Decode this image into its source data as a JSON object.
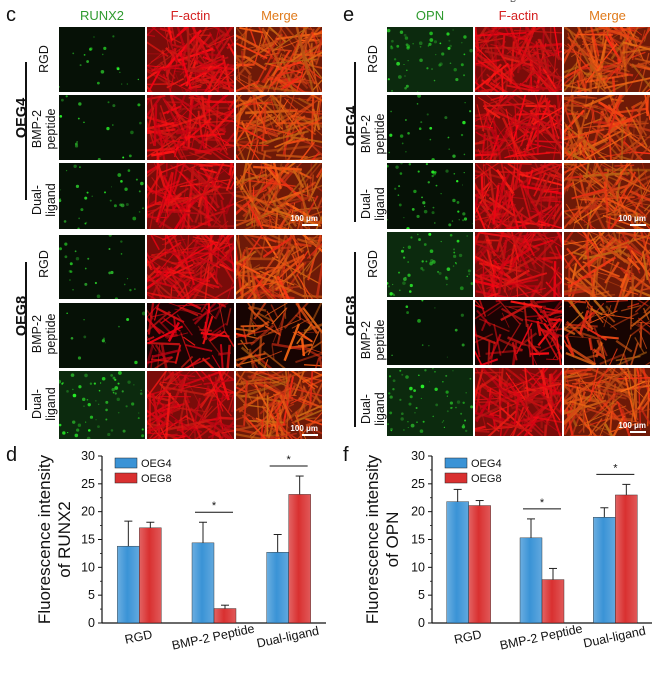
{
  "panels": {
    "c": {
      "letter": "c",
      "columns": [
        "RUNX2",
        "F-actin",
        "Merge"
      ],
      "column_colors": [
        "#2e9a2e",
        "#d42020",
        "#e07a1a"
      ],
      "groups": [
        "OEG4",
        "OEG8"
      ],
      "rows": [
        "RGD",
        "BMP-2\npeptide",
        "Dual-ligand"
      ],
      "scale_bar": "100 μm"
    },
    "e": {
      "letter": "e",
      "columns": [
        "OPN",
        "F-actin",
        "Merge"
      ],
      "column_colors": [
        "#2e9a2e",
        "#d42020",
        "#e07a1a"
      ],
      "groups": [
        "OEG4",
        "OEG8"
      ],
      "rows": [
        "RGD",
        "BMP-2\npeptide",
        "Dual-ligand"
      ],
      "scale_bar": "100 μm"
    },
    "top_fragment": "B"
  },
  "chart_data": [
    {
      "panel": "d",
      "type": "bar",
      "categories": [
        "RGD",
        "BMP-2 Peptide",
        "Dual-ligand"
      ],
      "series": [
        {
          "name": "OEG4",
          "values": [
            13.8,
            14.4,
            12.7
          ],
          "errors": [
            4.5,
            3.7,
            3.2
          ],
          "color": "#3a93d6"
        },
        {
          "name": "OEG8",
          "values": [
            17.1,
            2.6,
            23.1
          ],
          "errors": [
            1.0,
            0.6,
            3.3
          ],
          "color": "#d93030"
        }
      ],
      "ylabel": "Fluorescence intensity of RUNX2",
      "ylabel_lines": [
        "Fluorescence intensity",
        "of RUNX2"
      ],
      "ylim": [
        0,
        30
      ],
      "yticks": [
        "0",
        "5",
        "10",
        "15",
        "20",
        "25",
        "30"
      ],
      "significance": [
        {
          "category": "BMP-2 Peptide",
          "mark": "*"
        },
        {
          "category": "Dual-ligand",
          "mark": "*"
        }
      ],
      "legend_position": "top-left",
      "grid": false
    },
    {
      "panel": "f",
      "type": "bar",
      "categories": [
        "RGD",
        "BMP-2 Peptide",
        "Dual-ligand"
      ],
      "series": [
        {
          "name": "OEG4",
          "values": [
            21.8,
            15.3,
            19.0
          ],
          "errors": [
            2.2,
            3.4,
            1.7
          ],
          "color": "#3a93d6"
        },
        {
          "name": "OEG8",
          "values": [
            21.1,
            7.8,
            23.0
          ],
          "errors": [
            0.9,
            2.0,
            1.9
          ],
          "color": "#d93030"
        }
      ],
      "ylabel": "Fluorescence intensity of OPN",
      "ylabel_lines": [
        "Fluorescence intensity",
        "of OPN"
      ],
      "ylim": [
        0,
        30
      ],
      "yticks": [
        "0",
        "5",
        "10",
        "15",
        "20",
        "25",
        "30"
      ],
      "significance": [
        {
          "category": "BMP-2 Peptide",
          "mark": "*"
        },
        {
          "category": "Dual-ligand",
          "mark": "*"
        }
      ],
      "legend_position": "top-left",
      "grid": false
    }
  ],
  "chart_letters": [
    "d",
    "f"
  ]
}
